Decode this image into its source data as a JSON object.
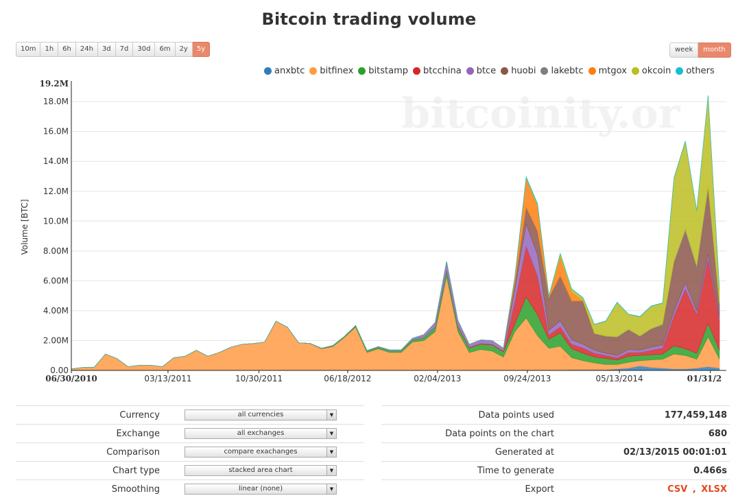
{
  "title": "Bitcoin trading volume",
  "ranges": [
    {
      "label": "10m",
      "active": false
    },
    {
      "label": "1h",
      "active": false
    },
    {
      "label": "6h",
      "active": false
    },
    {
      "label": "24h",
      "active": false
    },
    {
      "label": "3d",
      "active": false
    },
    {
      "label": "7d",
      "active": false
    },
    {
      "label": "30d",
      "active": false
    },
    {
      "label": "6m",
      "active": false
    },
    {
      "label": "2y",
      "active": false
    },
    {
      "label": "5y",
      "active": true
    }
  ],
  "periods": [
    {
      "label": "week",
      "active": false
    },
    {
      "label": "month",
      "active": true
    }
  ],
  "watermark": "bitcoinity.or",
  "colors": {
    "accent": "#e9886a",
    "link": "#e04a1f"
  },
  "chart_data": {
    "type": "area",
    "stacked": true,
    "title": "Bitcoin trading volume",
    "ylabel": "Volume [BTC]",
    "xlabel": "",
    "ylim": [
      0,
      19.2
    ],
    "y_unit": "M",
    "y_ticks": [
      "0.00",
      "2.00M",
      "4.00M",
      "6.00M",
      "8.00M",
      "10.0M",
      "12.0M",
      "14.0M",
      "16.0M",
      "18.0M",
      "19.2M"
    ],
    "x_ticks": [
      {
        "label": "06/30/2010",
        "index": 0,
        "bold": true
      },
      {
        "label": "03/13/2011",
        "index": 8.5
      },
      {
        "label": "10/30/2011",
        "index": 16.5
      },
      {
        "label": "06/18/2012",
        "index": 24.3
      },
      {
        "label": "02/04/2013",
        "index": 32.2
      },
      {
        "label": "09/24/2013",
        "index": 40.1
      },
      {
        "label": "05/13/2014",
        "index": 48.2
      },
      {
        "label": "01/31/2",
        "index": 56.2,
        "bold": true
      }
    ],
    "grid": true,
    "legend_position": "top-right",
    "series": [
      {
        "name": "anxbtc",
        "color": "#2f7ebc",
        "values": [
          0,
          0,
          0,
          0,
          0,
          0,
          0,
          0,
          0,
          0,
          0,
          0,
          0,
          0,
          0,
          0,
          0,
          0,
          0,
          0,
          0,
          0,
          0,
          0,
          0,
          0,
          0,
          0,
          0,
          0,
          0,
          0,
          0,
          0,
          0,
          0,
          0,
          0,
          0,
          0,
          0.02,
          0.02,
          0.03,
          0.02,
          0.05,
          0.05,
          0.05,
          0.05,
          0.1,
          0.15,
          0.3,
          0.2,
          0.15,
          0.1,
          0.1,
          0.15,
          0.25,
          0.15
        ]
      },
      {
        "name": "bitfinex",
        "color": "#ff9a45",
        "values": [
          0.1,
          0.2,
          0.2,
          1.1,
          0.8,
          0.25,
          0.35,
          0.35,
          0.25,
          0.85,
          0.95,
          1.35,
          0.95,
          1.2,
          1.55,
          1.75,
          1.8,
          1.9,
          3.3,
          2.9,
          1.85,
          1.8,
          1.45,
          1.6,
          2.2,
          2.9,
          1.2,
          1.45,
          1.2,
          1.2,
          1.9,
          2.0,
          2.6,
          6.3,
          2.6,
          1.2,
          1.4,
          1.3,
          0.9,
          2.6,
          3.5,
          2.3,
          1.45,
          1.6,
          0.8,
          0.6,
          0.45,
          0.35,
          0.3,
          0.4,
          0.35,
          0.5,
          0.6,
          1.0,
          0.9,
          0.6,
          2.0,
          0.6
        ]
      },
      {
        "name": "bitstamp",
        "color": "#2ca02c",
        "values": [
          0,
          0,
          0,
          0,
          0,
          0,
          0,
          0,
          0,
          0,
          0,
          0,
          0,
          0,
          0,
          0,
          0,
          0,
          0,
          0,
          0,
          0,
          0.02,
          0.05,
          0.05,
          0.08,
          0.1,
          0.1,
          0.12,
          0.12,
          0.15,
          0.2,
          0.3,
          0.35,
          0.3,
          0.3,
          0.35,
          0.4,
          0.35,
          0.5,
          1.4,
          1.4,
          0.6,
          0.9,
          0.6,
          0.5,
          0.4,
          0.4,
          0.3,
          0.4,
          0.35,
          0.35,
          0.35,
          0.55,
          0.45,
          0.4,
          0.9,
          0.6
        ]
      },
      {
        "name": "btcchina",
        "color": "#d62728",
        "values": [
          0,
          0,
          0,
          0,
          0,
          0,
          0,
          0,
          0,
          0,
          0,
          0,
          0,
          0,
          0,
          0,
          0,
          0,
          0,
          0,
          0,
          0,
          0,
          0,
          0,
          0,
          0,
          0,
          0,
          0,
          0,
          0,
          0.02,
          0.05,
          0.05,
          0.05,
          0.05,
          0.05,
          0.05,
          1.5,
          3.4,
          2.6,
          0.3,
          0.4,
          0.3,
          0.35,
          0.25,
          0.2,
          0.15,
          0.25,
          0.2,
          0.3,
          0.4,
          2.0,
          4.0,
          2.6,
          4.3,
          2.0
        ]
      },
      {
        "name": "btce",
        "color": "#9467bd",
        "values": [
          0,
          0,
          0,
          0,
          0,
          0,
          0,
          0,
          0,
          0,
          0,
          0,
          0,
          0,
          0,
          0,
          0,
          0,
          0,
          0,
          0,
          0.01,
          0.02,
          0.02,
          0.02,
          0.03,
          0.03,
          0.05,
          0.05,
          0.05,
          0.1,
          0.2,
          0.3,
          0.6,
          0.4,
          0.2,
          0.25,
          0.25,
          0.2,
          0.8,
          1.5,
          1.4,
          0.3,
          0.4,
          0.3,
          0.25,
          0.2,
          0.15,
          0.15,
          0.2,
          0.15,
          0.2,
          0.2,
          0.3,
          0.4,
          0.25,
          0.35,
          0.2
        ]
      },
      {
        "name": "huobi",
        "color": "#8c564b",
        "values": [
          0,
          0,
          0,
          0,
          0,
          0,
          0,
          0,
          0,
          0,
          0,
          0,
          0,
          0,
          0,
          0,
          0,
          0,
          0,
          0,
          0,
          0,
          0,
          0,
          0,
          0,
          0,
          0,
          0,
          0,
          0,
          0,
          0,
          0,
          0,
          0,
          0,
          0,
          0,
          0.4,
          1.1,
          1.6,
          2.2,
          3.0,
          2.6,
          2.9,
          1.1,
          1.1,
          1.2,
          1.3,
          0.9,
          1.2,
          1.3,
          3.2,
          3.4,
          2.8,
          4.2,
          0.8
        ]
      },
      {
        "name": "lakebtc",
        "color": "#7f7f7f",
        "values": [
          0,
          0,
          0,
          0,
          0,
          0,
          0,
          0,
          0,
          0,
          0,
          0,
          0,
          0,
          0,
          0,
          0,
          0,
          0,
          0,
          0,
          0,
          0,
          0,
          0,
          0,
          0,
          0,
          0,
          0,
          0,
          0,
          0,
          0,
          0,
          0,
          0,
          0,
          0,
          0,
          0,
          0,
          0,
          0,
          0,
          0,
          0.02,
          0.05,
          0.05,
          0.05,
          0.05,
          0.05,
          0.1,
          0.15,
          0.2,
          0.2,
          0.3,
          0.1
        ]
      },
      {
        "name": "mtgox",
        "color": "#ff7f0e",
        "values": [
          0,
          0,
          0,
          0,
          0,
          0,
          0,
          0,
          0,
          0,
          0,
          0,
          0,
          0,
          0,
          0,
          0,
          0,
          0,
          0,
          0,
          0,
          0,
          0,
          0,
          0,
          0,
          0,
          0,
          0,
          0,
          0,
          0,
          0,
          0,
          0,
          0,
          0,
          0,
          0.4,
          1.9,
          1.7,
          0,
          1.3,
          0.6,
          0,
          0,
          0,
          0,
          0,
          0,
          0,
          0,
          0,
          0,
          0,
          0,
          0
        ]
      },
      {
        "name": "okcoin",
        "color": "#bcbd22",
        "values": [
          0,
          0,
          0,
          0,
          0,
          0,
          0,
          0,
          0,
          0,
          0,
          0,
          0,
          0,
          0,
          0,
          0,
          0,
          0,
          0,
          0,
          0,
          0,
          0,
          0,
          0,
          0,
          0,
          0,
          0,
          0,
          0,
          0,
          0,
          0,
          0,
          0,
          0,
          0,
          0,
          0.1,
          0.1,
          0.1,
          0.2,
          0.2,
          0.2,
          0.6,
          1.0,
          2.3,
          1.0,
          1.3,
          1.5,
          1.4,
          5.6,
          5.9,
          3.7,
          6.1,
          1.0
        ]
      },
      {
        "name": "others",
        "color": "#17becf",
        "values": [
          0,
          0,
          0,
          0,
          0,
          0,
          0,
          0,
          0,
          0,
          0,
          0,
          0,
          0,
          0,
          0,
          0,
          0,
          0,
          0,
          0,
          0,
          0,
          0,
          0,
          0,
          0,
          0,
          0,
          0,
          0,
          0,
          0,
          0,
          0,
          0,
          0,
          0,
          0,
          0.05,
          0.05,
          0.05,
          0.02,
          0.02,
          0.02,
          0.02,
          0.02,
          0.02,
          0.02,
          0.02,
          0.02,
          0.02,
          0.02,
          0.02,
          0.02,
          0.02,
          0.02,
          0.02
        ]
      }
    ]
  },
  "settings": [
    {
      "label": "Currency",
      "value": "all currencies"
    },
    {
      "label": "Exchange",
      "value": "all exchanges"
    },
    {
      "label": "Comparison",
      "value": "compare exachanges"
    },
    {
      "label": "Chart type",
      "value": "stacked area chart"
    },
    {
      "label": "Smoothing",
      "value": "linear (none)"
    }
  ],
  "stats": [
    {
      "label": "Data points used",
      "value": "177,459,148"
    },
    {
      "label": "Data points on the chart",
      "value": "680"
    },
    {
      "label": "Generated at",
      "value": "02/13/2015 00:01:01"
    },
    {
      "label": "Time to generate",
      "value": "0.466s"
    }
  ],
  "export": {
    "label": "Export",
    "csv": "CSV",
    "separator": ",",
    "xlsx": "XLSX"
  }
}
